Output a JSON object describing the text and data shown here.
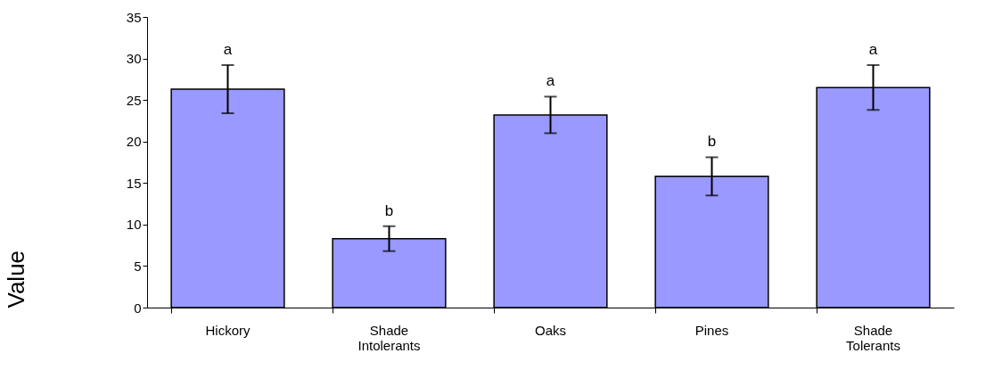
{
  "chart_data": {
    "type": "bar",
    "ylabel": "Value",
    "categories": [
      "Hickory",
      "Shade Intolerants",
      "Oaks",
      "Pines",
      "Shade Tolerants"
    ],
    "values": [
      26.3,
      8.3,
      23.2,
      15.8,
      26.5
    ],
    "errors": [
      2.9,
      1.5,
      2.2,
      2.3,
      2.7
    ],
    "color": "#9999ff",
    "ylim": [
      0,
      35
    ],
    "yticks": [
      0,
      5,
      10,
      15,
      20,
      25,
      30,
      35
    ],
    "grid": false,
    "annotations": [
      "a",
      "b",
      "a",
      "b",
      "a"
    ]
  }
}
